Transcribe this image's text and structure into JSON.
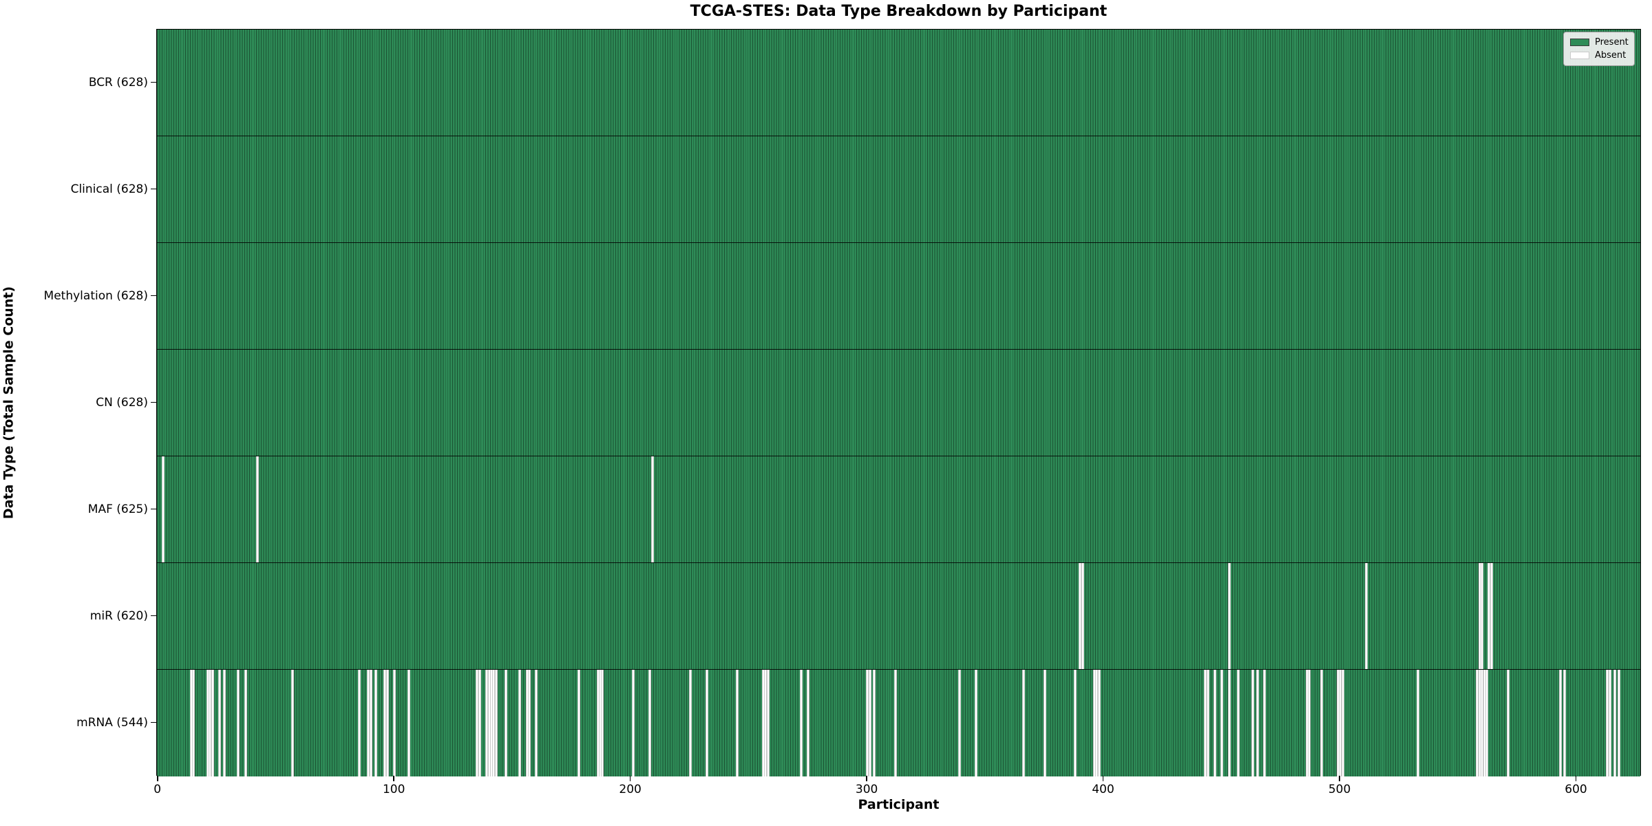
{
  "title": "TCGA-STES: Data Type Breakdown by Participant",
  "xlabel": "Participant",
  "ylabel": "Data Type (Total Sample Count)",
  "legend": {
    "present_label": "Present",
    "absent_label": "Absent"
  },
  "colors": {
    "present": "#2e8b57",
    "absent": "#ffffff",
    "grid_line": "#1c4a30",
    "spine": "#000000",
    "legend_bg": "#f2f2f2"
  },
  "chart_data": {
    "type": "heatmap",
    "x_axis": {
      "label": "Participant",
      "range": [
        0,
        628
      ],
      "ticks": [
        0,
        100,
        200,
        300,
        400,
        500,
        600
      ]
    },
    "y_axis": {
      "label": "Data Type (Total Sample Count)"
    },
    "n_participants": 628,
    "legend_position": "upper right",
    "rows": [
      {
        "label": "BCR (628)",
        "data_type": "BCR",
        "present_count": 628,
        "absent_participants": []
      },
      {
        "label": "Clinical (628)",
        "data_type": "Clinical",
        "present_count": 628,
        "absent_participants": []
      },
      {
        "label": "Methylation (628)",
        "data_type": "Methylation",
        "present_count": 628,
        "absent_participants": []
      },
      {
        "label": "CN (628)",
        "data_type": "CN",
        "present_count": 628,
        "absent_participants": []
      },
      {
        "label": "MAF (625)",
        "data_type": "MAF",
        "present_count": 625,
        "absent_participants": [
          2,
          42,
          209
        ]
      },
      {
        "label": "miR (620)",
        "data_type": "miR",
        "present_count": 620,
        "absent_participants": [
          390,
          391,
          453,
          511,
          559,
          560,
          563,
          564
        ]
      },
      {
        "label": "mRNA (544)",
        "data_type": "mRNA",
        "present_count": 544,
        "absent_participants": [
          14,
          15,
          21,
          22,
          23,
          26,
          28,
          34,
          37,
          57,
          85,
          89,
          90,
          92,
          96,
          97,
          100,
          106,
          135,
          136,
          139,
          140,
          141,
          142,
          143,
          147,
          153,
          156,
          157,
          160,
          178,
          186,
          187,
          188,
          201,
          208,
          225,
          232,
          245,
          256,
          257,
          258,
          272,
          275,
          300,
          301,
          303,
          312,
          339,
          346,
          366,
          375,
          388,
          396,
          397,
          398,
          443,
          444,
          447,
          450,
          453,
          457,
          463,
          465,
          468,
          486,
          487,
          492,
          499,
          500,
          501,
          533,
          558,
          559,
          560,
          561,
          562,
          571,
          593,
          595,
          613,
          614,
          616,
          618
        ]
      }
    ]
  }
}
